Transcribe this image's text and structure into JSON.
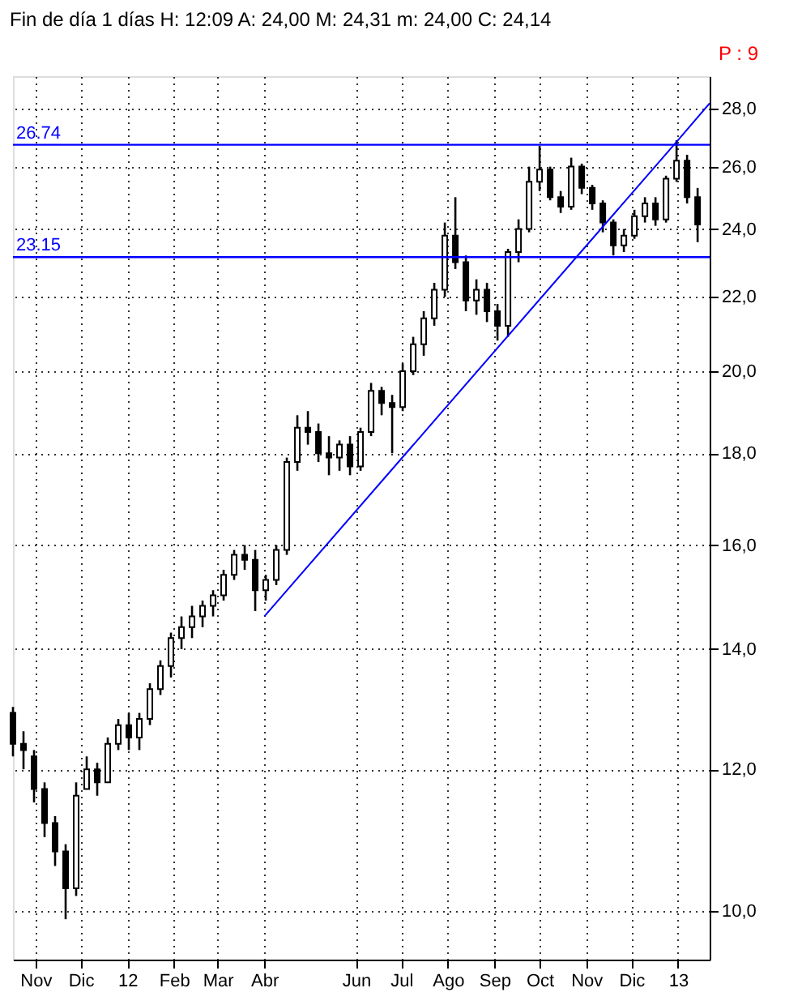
{
  "chart_data": {
    "type": "candlestick",
    "title": "Fin de día 1 días  H: 12:09  A: 24,00  M: 24,31  m: 24,00  C: 24,14",
    "annotations": [
      "P : 9"
    ],
    "color": "#000000",
    "x": [
      "2011-10-17",
      "2011-10-24",
      "2011-10-31",
      "2011-11-07",
      "2011-11-14",
      "2011-11-21",
      "2011-11-28",
      "2011-12-05",
      "2011-12-12",
      "2011-12-19",
      "2011-12-26",
      "2012-01-02",
      "2012-01-09",
      "2012-01-16",
      "2012-01-23",
      "2012-01-30",
      "2012-02-06",
      "2012-02-13",
      "2012-02-20",
      "2012-02-27",
      "2012-03-05",
      "2012-03-12",
      "2012-03-19",
      "2012-03-26",
      "2012-04-02",
      "2012-04-09",
      "2012-04-16",
      "2012-04-23",
      "2012-04-30",
      "2012-05-07",
      "2012-05-14",
      "2012-05-21",
      "2012-05-28",
      "2012-06-04",
      "2012-06-11",
      "2012-06-18",
      "2012-06-25",
      "2012-07-02",
      "2012-07-09",
      "2012-07-16",
      "2012-07-23",
      "2012-07-30",
      "2012-08-06",
      "2012-08-13",
      "2012-08-20",
      "2012-08-27",
      "2012-09-03",
      "2012-09-10",
      "2012-09-17",
      "2012-09-24",
      "2012-10-01",
      "2012-10-08",
      "2012-10-15",
      "2012-10-22",
      "2012-10-29",
      "2012-11-05",
      "2012-11-12",
      "2012-11-19",
      "2012-11-26",
      "2012-12-03",
      "2012-12-10",
      "2012-12-17",
      "2012-12-24",
      "2012-12-31",
      "2013-01-07",
      "2013-01-14"
    ],
    "ohlc": [
      [
        12.9,
        13.0,
        12.2,
        12.4
      ],
      [
        12.4,
        12.6,
        12.0,
        12.3
      ],
      [
        12.2,
        12.3,
        11.5,
        11.7
      ],
      [
        11.7,
        11.8,
        11.0,
        11.2
      ],
      [
        11.2,
        11.3,
        10.6,
        10.8
      ],
      [
        10.8,
        10.9,
        9.9,
        10.3
      ],
      [
        10.3,
        11.8,
        10.2,
        11.6
      ],
      [
        11.7,
        12.2,
        11.7,
        12.0
      ],
      [
        12.0,
        12.1,
        11.6,
        11.8
      ],
      [
        11.8,
        12.5,
        11.8,
        12.4
      ],
      [
        12.4,
        12.8,
        12.3,
        12.7
      ],
      [
        12.7,
        12.9,
        12.3,
        12.5
      ],
      [
        12.5,
        12.9,
        12.3,
        12.8
      ],
      [
        12.8,
        13.4,
        12.7,
        13.3
      ],
      [
        13.3,
        13.8,
        13.2,
        13.7
      ],
      [
        13.7,
        14.3,
        13.5,
        14.2
      ],
      [
        14.2,
        14.6,
        14.0,
        14.4
      ],
      [
        14.4,
        14.8,
        14.2,
        14.6
      ],
      [
        14.6,
        14.9,
        14.4,
        14.8
      ],
      [
        14.8,
        15.1,
        14.6,
        15.0
      ],
      [
        15.0,
        15.5,
        14.9,
        15.4
      ],
      [
        15.4,
        15.9,
        15.3,
        15.8
      ],
      [
        15.8,
        16.0,
        15.5,
        15.7
      ],
      [
        15.7,
        15.9,
        14.7,
        15.1
      ],
      [
        15.1,
        15.4,
        14.9,
        15.3
      ],
      [
        15.3,
        16.0,
        15.2,
        15.9
      ],
      [
        15.9,
        17.9,
        15.8,
        17.8
      ],
      [
        17.8,
        18.9,
        17.6,
        18.6
      ],
      [
        18.6,
        19.0,
        18.2,
        18.5
      ],
      [
        18.5,
        18.7,
        17.8,
        18.0
      ],
      [
        18.0,
        18.4,
        17.5,
        17.9
      ],
      [
        17.9,
        18.3,
        17.6,
        18.2
      ],
      [
        18.2,
        18.4,
        17.5,
        17.7
      ],
      [
        17.7,
        18.6,
        17.6,
        18.5
      ],
      [
        18.5,
        19.7,
        18.4,
        19.5
      ],
      [
        19.5,
        19.6,
        18.9,
        19.2
      ],
      [
        19.2,
        19.4,
        18.0,
        19.1
      ],
      [
        19.1,
        20.2,
        19.0,
        20.0
      ],
      [
        20.0,
        20.9,
        19.9,
        20.7
      ],
      [
        20.7,
        21.6,
        20.4,
        21.4
      ],
      [
        21.4,
        22.4,
        21.2,
        22.2
      ],
      [
        22.2,
        24.2,
        22.0,
        23.8
      ],
      [
        23.8,
        25.0,
        22.8,
        23.0
      ],
      [
        23.0,
        23.2,
        21.6,
        21.9
      ],
      [
        21.9,
        22.5,
        21.5,
        22.2
      ],
      [
        22.2,
        22.4,
        21.3,
        21.6
      ],
      [
        21.6,
        21.8,
        20.8,
        21.2
      ],
      [
        21.2,
        23.4,
        20.9,
        23.3
      ],
      [
        23.3,
        24.3,
        23.0,
        24.0
      ],
      [
        24.0,
        26.0,
        23.9,
        25.5
      ],
      [
        25.5,
        26.7,
        25.2,
        25.9
      ],
      [
        25.9,
        26.0,
        24.9,
        25.0
      ],
      [
        25.0,
        25.2,
        24.5,
        24.7
      ],
      [
        24.7,
        26.3,
        24.6,
        26.0
      ],
      [
        26.0,
        26.1,
        25.1,
        25.3
      ],
      [
        25.3,
        25.4,
        24.6,
        24.8
      ],
      [
        24.8,
        24.9,
        23.9,
        24.2
      ],
      [
        24.2,
        24.3,
        23.2,
        23.5
      ],
      [
        23.5,
        24.0,
        23.3,
        23.8
      ],
      [
        23.8,
        24.6,
        23.7,
        24.4
      ],
      [
        24.4,
        25.0,
        24.2,
        24.8
      ],
      [
        24.8,
        25.0,
        24.1,
        24.3
      ],
      [
        24.3,
        25.7,
        24.2,
        25.6
      ],
      [
        25.6,
        26.9,
        25.5,
        26.2
      ],
      [
        26.2,
        26.4,
        24.8,
        25.0
      ],
      [
        25.0,
        25.3,
        23.6,
        24.14
      ]
    ],
    "series": [
      {
        "type": "line",
        "color": "#0000ff",
        "x": [
          "2012-04-01",
          "2013-01-01",
          "2013-01-22"
        ],
        "values": [
          14.6,
          26.9,
          28.2
        ]
      }
    ],
    "ref_lines": [
      {
        "axis": "y",
        "value": 26.74,
        "label": "26.74",
        "color": "#0000ff"
      },
      {
        "axis": "y",
        "value": 23.15,
        "label": "23.15",
        "color": "#0000ff"
      }
    ],
    "log": "y",
    "ylim": [
      9.4,
      29.2
    ],
    "yticks": [
      {
        "value": 10,
        "label": "10,0"
      },
      {
        "value": 12,
        "label": "12,0"
      },
      {
        "value": 14,
        "label": "14,0"
      },
      {
        "value": 16,
        "label": "16,0"
      },
      {
        "value": 18,
        "label": "18,0"
      },
      {
        "value": 20,
        "label": "20,0"
      },
      {
        "value": 22,
        "label": "22,0"
      },
      {
        "value": 24,
        "label": "24,0"
      },
      {
        "value": 26,
        "label": "26,0"
      },
      {
        "value": 28,
        "label": "28,0"
      }
    ],
    "xlim": [
      "2011-10-17",
      "2013-01-22"
    ],
    "xticks": [
      {
        "value": "2011-11-01",
        "label": "Nov"
      },
      {
        "value": "2011-12-01",
        "label": "Dic"
      },
      {
        "value": "2012-01-01",
        "label": "12"
      },
      {
        "value": "2012-02-01",
        "label": "Feb"
      },
      {
        "value": "2012-03-01",
        "label": "Mar"
      },
      {
        "value": "2012-04-01",
        "label": "Abr"
      },
      {
        "value": "2012-06-01",
        "label": "Jun"
      },
      {
        "value": "2012-07-01",
        "label": "Jul"
      },
      {
        "value": "2012-08-01",
        "label": "Ago"
      },
      {
        "value": "2012-09-01",
        "label": "Sep"
      },
      {
        "value": "2012-10-01",
        "label": "Oct"
      },
      {
        "value": "2012-11-01",
        "label": "Nov"
      },
      {
        "value": "2012-12-01",
        "label": "Dic"
      },
      {
        "value": "2013-01-01",
        "label": "13"
      }
    ],
    "grid": true
  }
}
